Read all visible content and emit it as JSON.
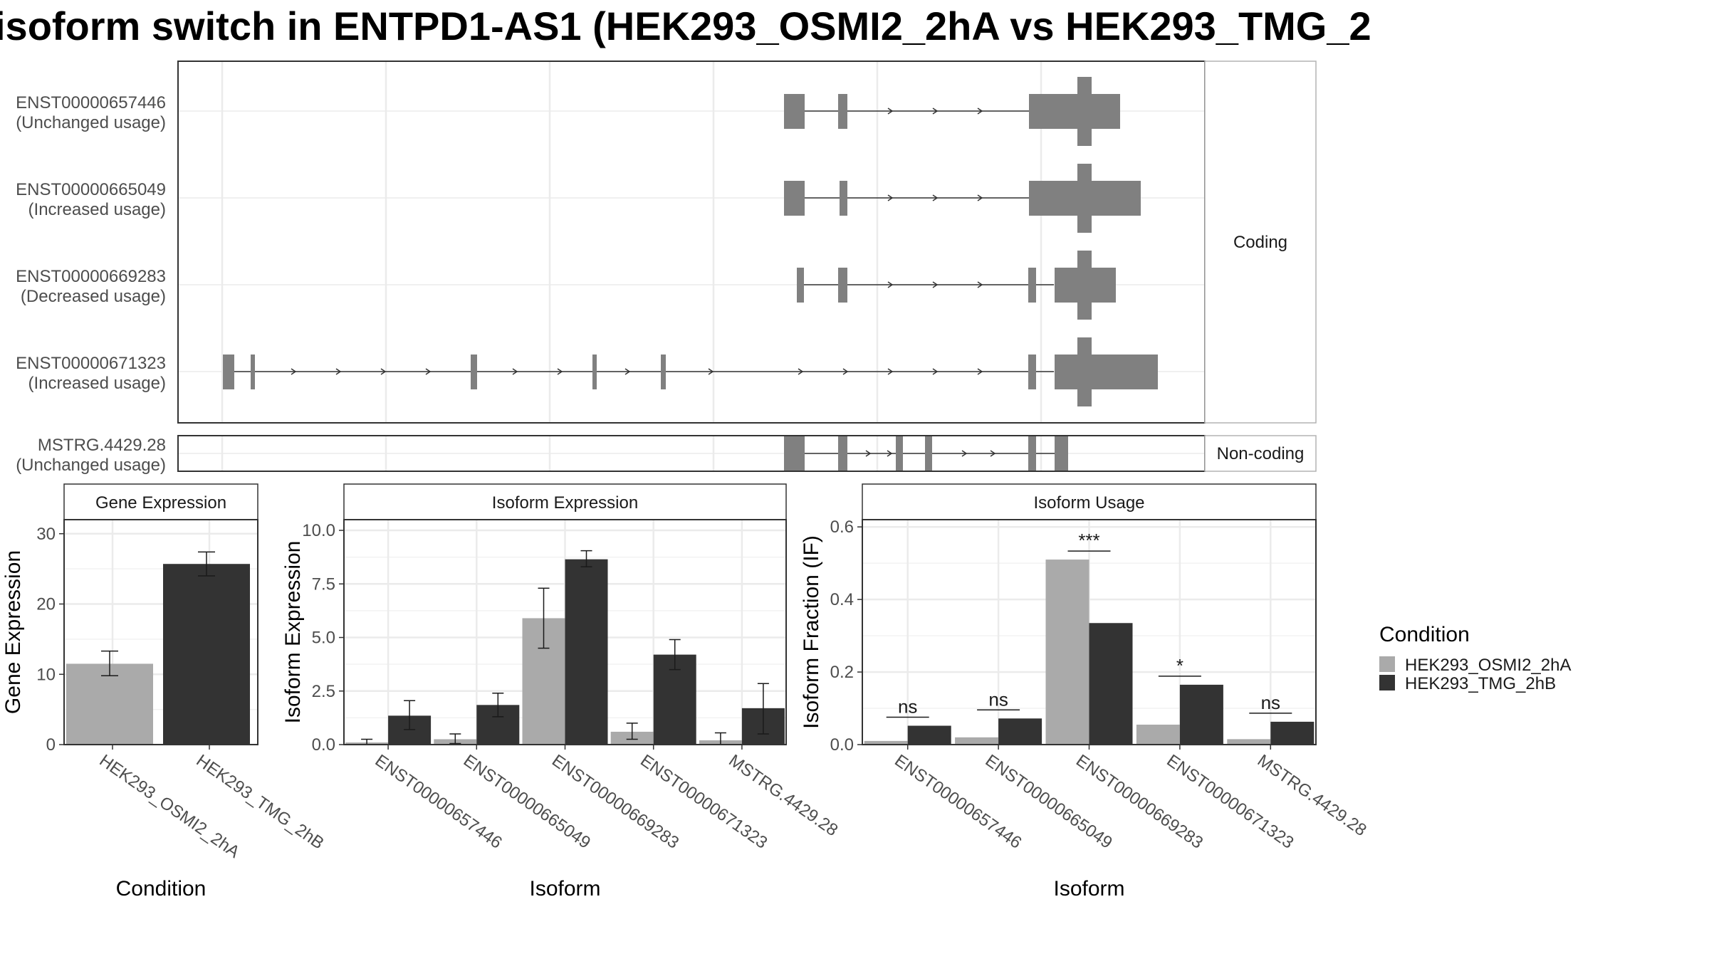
{
  "title": "isoform switch in ENTPD1-AS1 (HEK293_OSMI2_2hA vs HEK293_TMG_2",
  "colors": {
    "cond_a": "#aaaaaa",
    "cond_b": "#333333",
    "structure": "#808080",
    "grid": "#ebebeb",
    "strip_fill": "#ffffff",
    "panel_border": "#333333"
  },
  "structure_panel": {
    "facets": [
      "Coding",
      "Non-coding"
    ],
    "isoforms": [
      {
        "id": "ENST00000657446",
        "usage": "(Unchanged usage)",
        "facet": "Coding"
      },
      {
        "id": "ENST00000665049",
        "usage": "(Increased usage)",
        "facet": "Coding"
      },
      {
        "id": "ENST00000669283",
        "usage": "(Decreased usage)",
        "facet": "Coding"
      },
      {
        "id": "ENST00000671323",
        "usage": "(Increased usage)",
        "facet": "Coding"
      },
      {
        "id": "MSTRG.4429.28",
        "usage": "(Unchanged usage)",
        "facet": "Non-coding"
      }
    ]
  },
  "chart_data": [
    {
      "type": "bar",
      "strip": "Gene Expression",
      "xlabel": "Condition",
      "ylabel": "Gene Expression",
      "ylim": [
        0,
        32
      ],
      "yticks": [
        0,
        10,
        20,
        30
      ],
      "categories": [
        "HEK293_OSMI2_2hA",
        "HEK293_TMG_2hB"
      ],
      "values": [
        11.5,
        25.7
      ],
      "error_low": [
        9.8,
        24.0
      ],
      "error_high": [
        13.3,
        27.4
      ]
    },
    {
      "type": "bar",
      "strip": "Isoform Expression",
      "xlabel": "Isoform",
      "ylabel": "Isoform Expression",
      "ylim": [
        0,
        10.5
      ],
      "yticks": [
        "0.0",
        "2.5",
        "5.0",
        "7.5",
        "10.0"
      ],
      "categories": [
        "ENST00000657446",
        "ENST00000665049",
        "ENST00000669283",
        "ENST00000671323",
        "MSTRG.4429.28"
      ],
      "series": [
        {
          "name": "HEK293_OSMI2_2hA",
          "values": [
            0.1,
            0.25,
            5.9,
            0.6,
            0.2
          ],
          "error_low": [
            0.0,
            0.05,
            4.5,
            0.25,
            0.0
          ],
          "error_high": [
            0.25,
            0.5,
            7.3,
            1.0,
            0.55
          ]
        },
        {
          "name": "HEK293_TMG_2hB",
          "values": [
            1.35,
            1.85,
            8.65,
            4.2,
            1.7
          ],
          "error_low": [
            0.7,
            1.3,
            8.3,
            3.5,
            0.5
          ],
          "error_high": [
            2.05,
            2.4,
            9.05,
            4.9,
            2.85
          ]
        }
      ]
    },
    {
      "type": "bar",
      "strip": "Isoform Usage",
      "xlabel": "Isoform",
      "ylabel": "Isoform Fraction (IF)",
      "ylim": [
        0,
        0.62
      ],
      "yticks": [
        "0.0",
        "0.2",
        "0.4",
        "0.6"
      ],
      "categories": [
        "ENST00000657446",
        "ENST00000665049",
        "ENST00000669283",
        "ENST00000671323",
        "MSTRG.4429.28"
      ],
      "series": [
        {
          "name": "HEK293_OSMI2_2hA",
          "values": [
            0.01,
            0.02,
            0.51,
            0.055,
            0.015
          ]
        },
        {
          "name": "HEK293_TMG_2hB",
          "values": [
            0.052,
            0.072,
            0.335,
            0.165,
            0.063
          ]
        }
      ],
      "significance": [
        "ns",
        "ns",
        "***",
        "*",
        "ns"
      ]
    }
  ],
  "legend": {
    "title": "Condition",
    "items": [
      "HEK293_OSMI2_2hA",
      "HEK293_TMG_2hB"
    ]
  }
}
